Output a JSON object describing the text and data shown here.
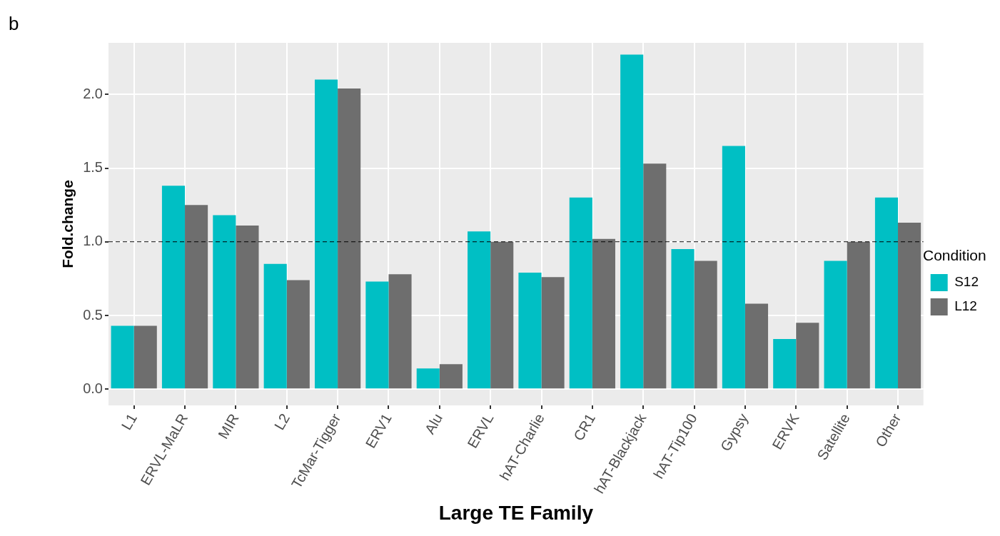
{
  "chart_data": {
    "type": "bar",
    "xlabel": "Large TE Family",
    "ylabel": "Fold.change",
    "legend_title": "Condition",
    "legend": "right",
    "categories": [
      "L1",
      "ERVL-MaLR",
      "MIR",
      "L2",
      "TcMar-Tigger",
      "ERV1",
      "Alu",
      "ERVL",
      "hAT-Charlie",
      "CR1",
      "hAT-Blackjack",
      "hAT-Tip100",
      "Gypsy",
      "ERVK",
      "Satellite",
      "Other"
    ],
    "series": [
      {
        "name": "S12",
        "color": "#00bfc4",
        "values": [
          0.43,
          1.38,
          1.18,
          0.85,
          2.1,
          0.73,
          0.14,
          1.07,
          0.79,
          1.3,
          2.27,
          0.95,
          1.65,
          0.34,
          0.87,
          1.3
        ]
      },
      {
        "name": "L12",
        "color": "#6e6e6e",
        "values": [
          0.43,
          1.25,
          1.11,
          0.74,
          2.04,
          0.78,
          0.17,
          1.0,
          0.76,
          1.02,
          1.53,
          0.87,
          0.58,
          0.45,
          1.0,
          1.13
        ]
      }
    ],
    "ylim": [
      -0.11,
      2.35
    ],
    "yticks": [
      {
        "value": 0,
        "label": "0.0"
      },
      0.5,
      {
        "value": 1,
        "label": "1.0"
      },
      1.5,
      {
        "value": 2,
        "label": "2.0"
      }
    ],
    "grid": true,
    "ref_lines": [
      {
        "axis": "y",
        "value": 1,
        "color": "#000000",
        "line_style": "dashed"
      }
    ],
    "annotations": [
      "b"
    ]
  }
}
